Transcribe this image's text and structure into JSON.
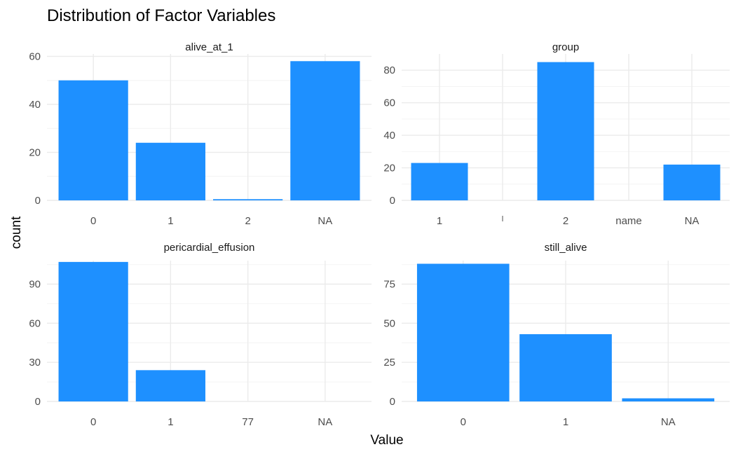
{
  "colors": {
    "bar": "#1E90FF",
    "grid_major": "#EBEBEB",
    "grid_minor": "#F4F4F4",
    "background": "#FFFFFF"
  },
  "chart_data": {
    "type": "bar",
    "title": "Distribution of Factor Variables",
    "xlabel": "Value",
    "ylabel": "count",
    "grid": true,
    "facets": [
      {
        "name": "alive_at_1",
        "categories": [
          "0",
          "1",
          "2",
          "NA"
        ],
        "values": [
          50,
          24,
          0.5,
          58
        ],
        "ylim": [
          0,
          61
        ],
        "yticks": [
          0,
          20,
          40,
          60
        ]
      },
      {
        "name": "group",
        "categories": [
          "1",
          "",
          "2",
          "name",
          "NA"
        ],
        "values": [
          23,
          0,
          85,
          0,
          22
        ],
        "ylim": [
          0,
          90
        ],
        "yticks": [
          0,
          20,
          40,
          60,
          80
        ]
      },
      {
        "name": "pericardial_effusion",
        "categories": [
          "0",
          "1",
          "77",
          "NA"
        ],
        "values": [
          107,
          24,
          0,
          0
        ],
        "ylim": [
          0,
          108
        ],
        "yticks": [
          0,
          30,
          60,
          90
        ]
      },
      {
        "name": "still_alive",
        "categories": [
          "0",
          "1",
          "NA"
        ],
        "values": [
          88,
          43,
          2
        ],
        "ylim": [
          0,
          90
        ],
        "yticks": [
          0,
          25,
          50,
          75
        ]
      }
    ]
  }
}
